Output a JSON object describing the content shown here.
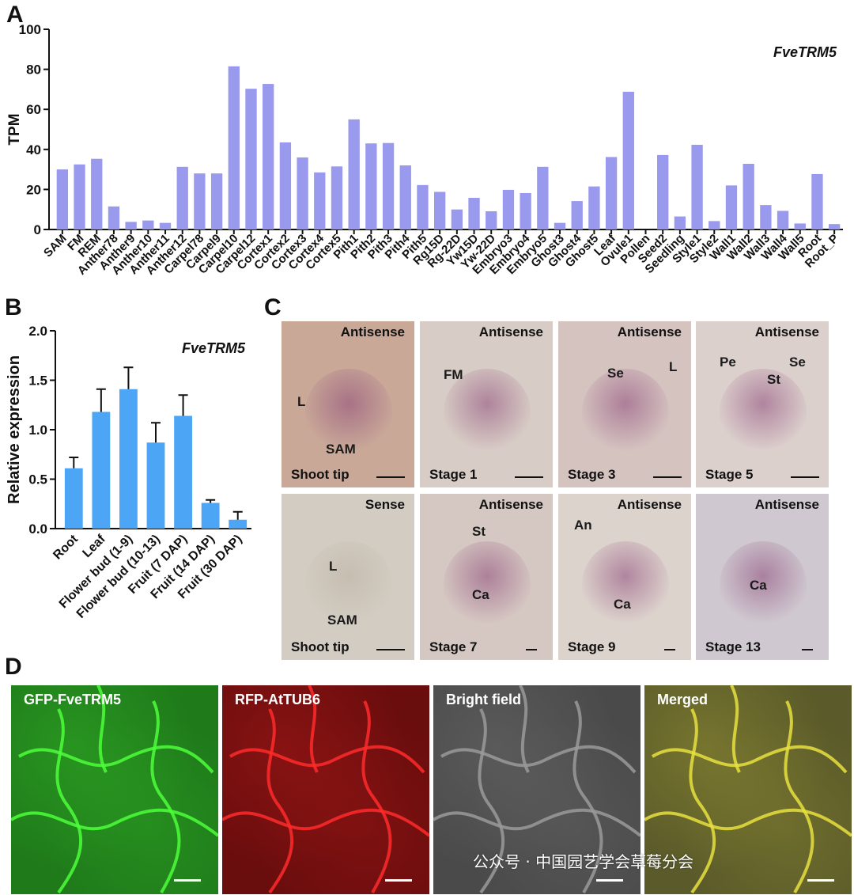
{
  "panels": {
    "a": "A",
    "b": "B",
    "c": "C",
    "d": "D"
  },
  "chart_data": [
    {
      "type": "bar",
      "title": "FveTRM5",
      "xlabel": "",
      "ylabel": "TPM",
      "ylim": [
        0,
        100
      ],
      "yticks": [
        "0",
        "20",
        "40",
        "60",
        "80",
        "100"
      ],
      "categories": [
        "SAM",
        "FM",
        "REM",
        "Anther78",
        "Anther9",
        "Anther10",
        "Anther11",
        "Anther12",
        "Carpel78",
        "Carpel9",
        "Carpel10",
        "Carpel12",
        "Cortex1",
        "Cortex2",
        "Cortex3",
        "Cortex4",
        "Cortex5",
        "Pith1",
        "Pith2",
        "Pith3",
        "Pith4",
        "Pith5",
        "Rg15D",
        "Rg-22D",
        "Yw15D",
        "Yw-22D",
        "Embryo3",
        "Embryo4",
        "Embryo5",
        "Ghost3",
        "Ghost4",
        "Ghost5",
        "Leaf",
        "Ovule1",
        "Pollen",
        "Seed2",
        "Seedling",
        "Style1",
        "Style2",
        "Wall1",
        "Wall2",
        "Wall3",
        "Wall4",
        "Wall5",
        "Root",
        "Root_P"
      ],
      "values": [
        30,
        32.5,
        35.3,
        11.5,
        3.8,
        4.5,
        3.3,
        31.3,
        28,
        28,
        81.5,
        70.3,
        72.7,
        43.5,
        36,
        28.5,
        31.5,
        55,
        43,
        43.2,
        32,
        22.2,
        18.8,
        10,
        15.8,
        9.1,
        19.8,
        18.2,
        31.3,
        3.3,
        14.2,
        21.5,
        36.2,
        68.8,
        0,
        37.2,
        6.5,
        42.3,
        4.2,
        22,
        32.8,
        12.2,
        9.3,
        3,
        27.7,
        2.7
      ],
      "color": "#9999ee",
      "grid": false
    },
    {
      "type": "bar",
      "title": "FveTRM5",
      "xlabel": "",
      "ylabel": "Relative expression",
      "ylim": [
        0,
        2.0
      ],
      "yticks": [
        "0.0",
        "0.5",
        "1.0",
        "1.5",
        "2.0"
      ],
      "categories": [
        "Root",
        "Leaf",
        "Flower bud (1-9)",
        "Flower bud (10-13)",
        "Fruit (7 DAP)",
        "Fruit (14 DAP)",
        "Fruit (30 DAP)"
      ],
      "values": [
        0.61,
        1.18,
        1.41,
        0.87,
        1.14,
        0.26,
        0.09
      ],
      "errors": [
        0.11,
        0.23,
        0.22,
        0.2,
        0.21,
        0.03,
        0.08
      ],
      "color": "#4da6f5",
      "grid": false
    }
  ],
  "panel_c": {
    "tiles": [
      {
        "probe": "Antisense",
        "stage": "Shoot tip",
        "labels": [
          "L",
          "SAM"
        ],
        "bg": "#c9a898"
      },
      {
        "probe": "Antisense",
        "stage": "Stage 1",
        "labels": [
          "FM"
        ],
        "bg": "#d8cdc6"
      },
      {
        "probe": "Antisense",
        "stage": "Stage 3",
        "labels": [
          "Se",
          "L"
        ],
        "bg": "#d5c3c0"
      },
      {
        "probe": "Antisense",
        "stage": "Stage 5",
        "labels": [
          "Pe",
          "St",
          "Se"
        ],
        "bg": "#dcd0cd"
      },
      {
        "probe": "Sense",
        "stage": "Shoot tip",
        "labels": [
          "L",
          "SAM"
        ],
        "bg": "#d2ccc2"
      },
      {
        "probe": "Antisense",
        "stage": "Stage 7",
        "labels": [
          "St",
          "Ca"
        ],
        "bg": "#d5c7c2"
      },
      {
        "probe": "Antisense",
        "stage": "Stage 9",
        "labels": [
          "An",
          "Ca"
        ],
        "bg": "#ddd3cd"
      },
      {
        "probe": "Antisense",
        "stage": "Stage 13",
        "labels": [
          "Ca"
        ],
        "bg": "#cfc8d0"
      }
    ]
  },
  "panel_d": {
    "tiles": [
      {
        "title": "GFP-FveTRM5",
        "bg": "#1f7a1a",
        "accent": "#4cff3a"
      },
      {
        "title": "RFP-AtTUB6",
        "bg": "#6a0d0d",
        "accent": "#ff2a2a"
      },
      {
        "title": "Bright field",
        "bg": "#4a4a4a",
        "accent": "#9a9a9a"
      },
      {
        "title": "Merged",
        "bg": "#5a5a2a",
        "accent": "#e8e040"
      }
    ]
  },
  "watermark": "公众号 · 中国园艺学会草莓分会"
}
